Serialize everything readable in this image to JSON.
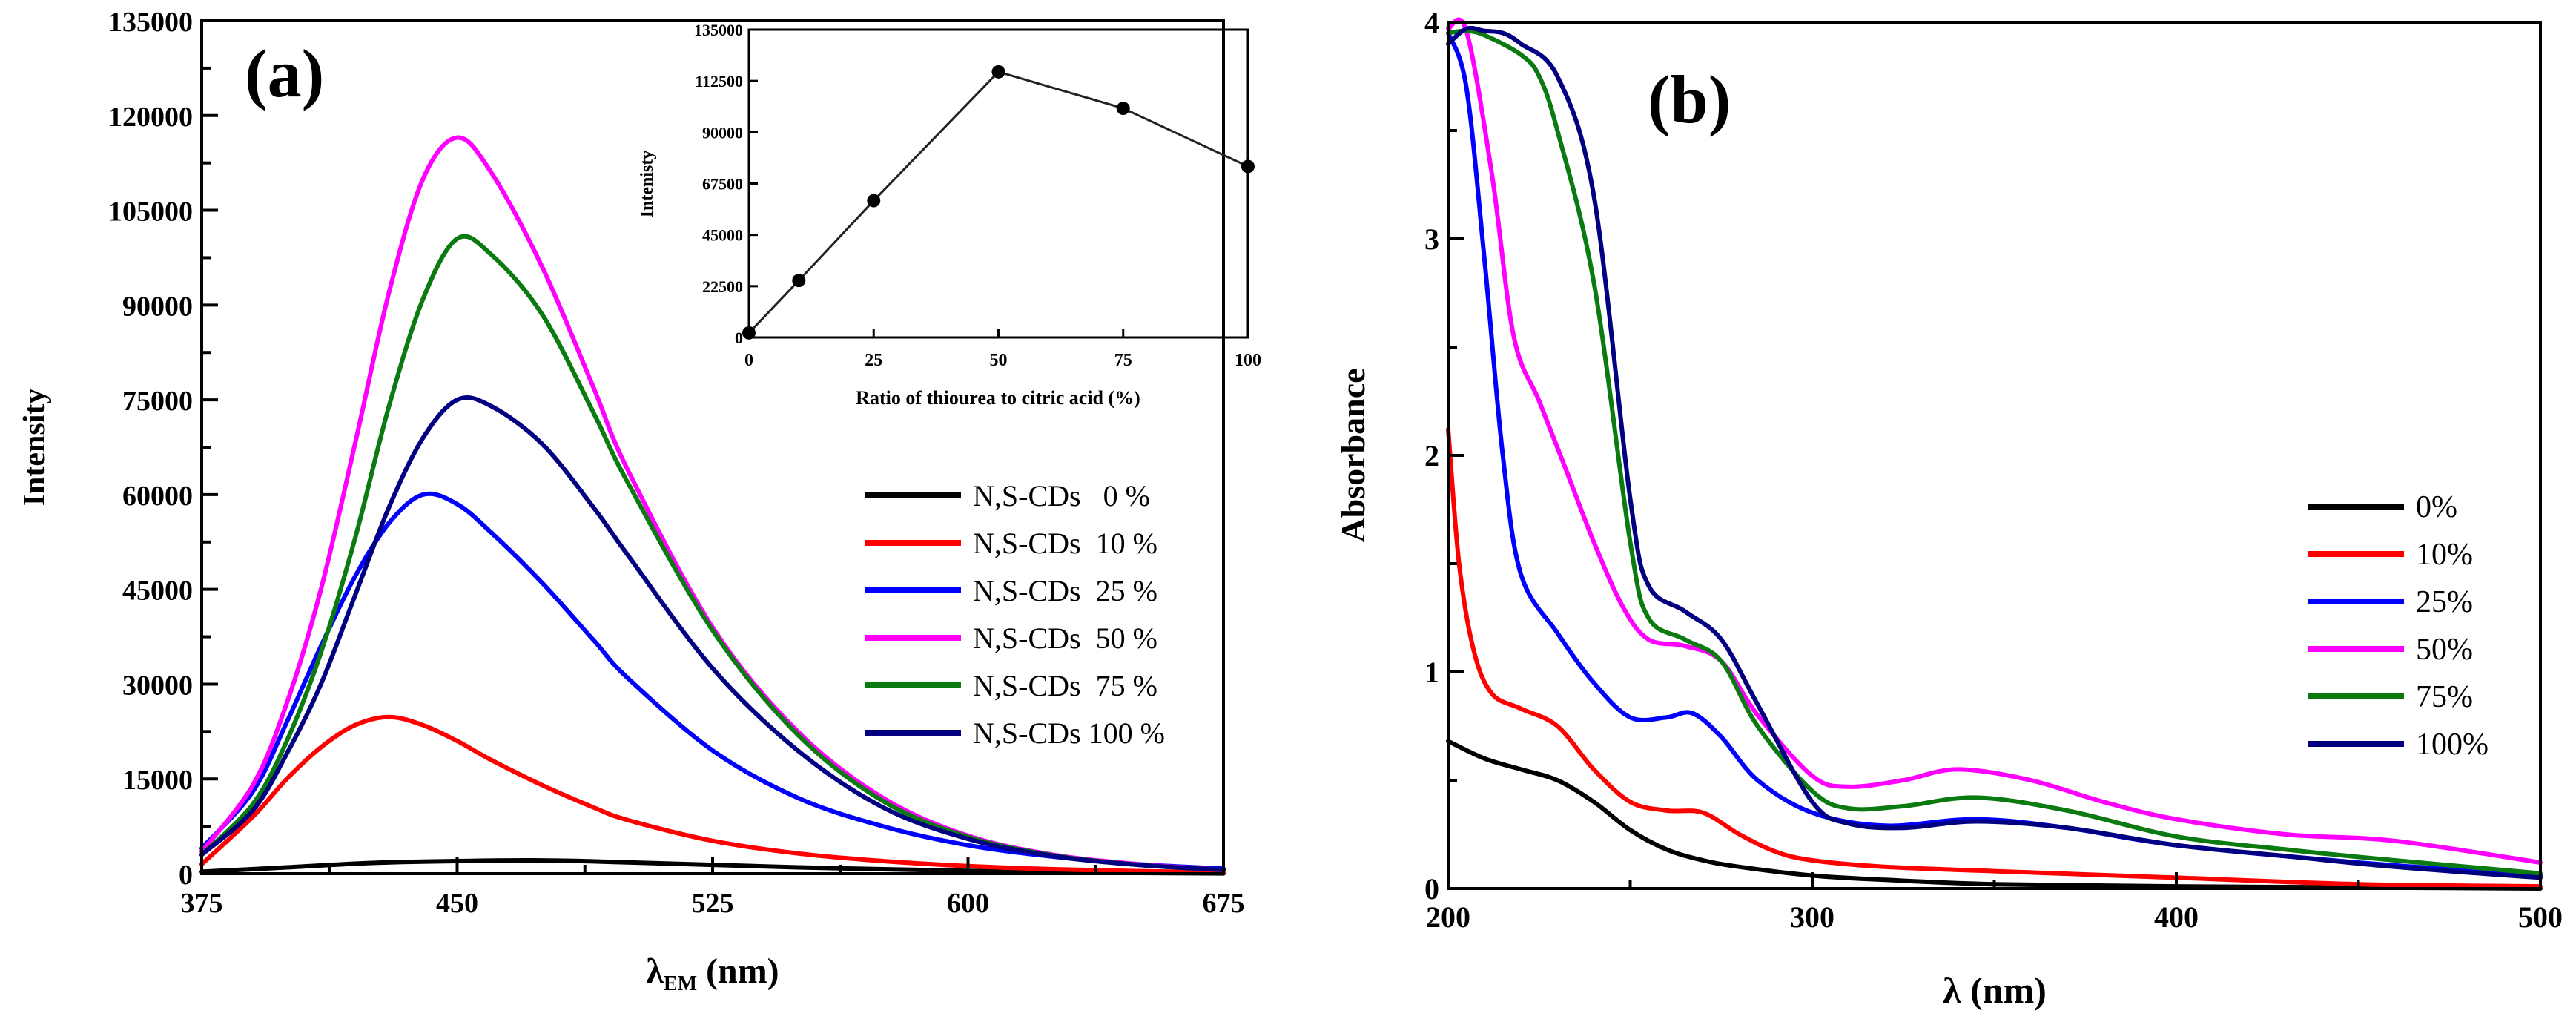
{
  "chart_data": [
    {
      "type": "line",
      "panel_label": "(a)",
      "xlabel_main": "λ",
      "xlabel_sub": "EM",
      "xlabel_unit": " (nm)",
      "ylabel": "Intensity",
      "xlim": [
        375,
        675
      ],
      "ylim": [
        0,
        135000
      ],
      "xticks": [
        "375",
        "450",
        "525",
        "600",
        "675"
      ],
      "yticks": [
        "0",
        "15000",
        "30000",
        "45000",
        "60000",
        "75000",
        "90000",
        "105000",
        "120000",
        "135000"
      ],
      "legend_location": "right",
      "series": [
        {
          "name": "N,S-CDs   0 %",
          "color": "#000000",
          "x": [
            375,
            400,
            425,
            450,
            475,
            500,
            525,
            550,
            575,
            600,
            625,
            650,
            675
          ],
          "y": [
            300,
            1000,
            1700,
            2000,
            2100,
            1800,
            1400,
            1000,
            700,
            450,
            250,
            120,
            50
          ]
        },
        {
          "name": "N,S-CDs  10 %",
          "color": "#ff0000",
          "x": [
            375,
            390,
            400,
            410,
            420,
            430,
            440,
            450,
            460,
            475,
            490,
            500,
            525,
            550,
            575,
            600,
            625,
            650,
            675
          ],
          "y": [
            1500,
            9000,
            15000,
            20000,
            23500,
            24800,
            23500,
            21000,
            18000,
            14000,
            10500,
            8500,
            5200,
            3200,
            2000,
            1200,
            700,
            400,
            200
          ]
        },
        {
          "name": "N,S-CDs  25 %",
          "color": "#0000ff",
          "x": [
            375,
            390,
            400,
            410,
            420,
            430,
            440,
            450,
            460,
            475,
            490,
            500,
            525,
            550,
            575,
            600,
            625,
            650,
            675
          ],
          "y": [
            4000,
            13000,
            24000,
            36000,
            47000,
            55500,
            60000,
            58500,
            54000,
            46000,
            37000,
            31000,
            19500,
            12000,
            7500,
            4500,
            2700,
            1500,
            800
          ]
        },
        {
          "name": "N,S-CDs  50 %",
          "color": "#ff00ff",
          "x": [
            375,
            390,
            400,
            410,
            420,
            430,
            440,
            450,
            460,
            475,
            490,
            500,
            525,
            550,
            575,
            600,
            625,
            650,
            675
          ],
          "y": [
            3500,
            14000,
            27000,
            45000,
            68000,
            92000,
            110000,
            116500,
            111000,
            96000,
            77000,
            64000,
            39000,
            22500,
            12000,
            6000,
            3000,
            1500,
            600
          ]
        },
        {
          "name": "N,S-CDs  75 %",
          "color": "#0b7a10",
          "x": [
            375,
            390,
            400,
            410,
            420,
            430,
            440,
            450,
            460,
            475,
            490,
            500,
            525,
            550,
            575,
            600,
            625,
            650,
            675
          ],
          "y": [
            3000,
            11000,
            21000,
            35000,
            53000,
            74000,
            91000,
            100500,
            98000,
            88500,
            73000,
            62000,
            38500,
            22000,
            11500,
            5800,
            2900,
            1400,
            600
          ]
        },
        {
          "name": "N,S-CDs 100 %",
          "color": "#000080",
          "x": [
            375,
            390,
            400,
            410,
            420,
            430,
            440,
            450,
            460,
            475,
            490,
            500,
            525,
            550,
            575,
            600,
            625,
            650,
            675
          ],
          "y": [
            3000,
            10000,
            19000,
            30000,
            44000,
            58000,
            69000,
            75000,
            74000,
            68000,
            58000,
            50500,
            32500,
            19500,
            10500,
            5500,
            2800,
            1400,
            600
          ]
        }
      ],
      "inset": {
        "type": "line",
        "xlabel": "Ratio of thiourea to citric acid (%)",
        "ylabel": "Intenisty",
        "xlim": [
          0,
          100
        ],
        "ylim": [
          0,
          135000
        ],
        "xticks": [
          "0",
          "25",
          "50",
          "75",
          "100"
        ],
        "yticks": [
          "0",
          "22500",
          "45000",
          "67500",
          "90000",
          "112500",
          "135000"
        ],
        "x": [
          0,
          10,
          25,
          50,
          75,
          100
        ],
        "y": [
          2000,
          25000,
          60000,
          116500,
          100500,
          75000
        ]
      }
    },
    {
      "type": "line",
      "panel_label": "(b)",
      "xlabel": "λ (nm)",
      "ylabel": "Absorbance",
      "xlim": [
        200,
        500
      ],
      "ylim": [
        0,
        4
      ],
      "xticks": [
        "200",
        "300",
        "400",
        "500"
      ],
      "yticks": [
        "0",
        "1",
        "2",
        "3",
        "4"
      ],
      "legend_location": "right",
      "series": [
        {
          "name": "0%",
          "color": "#000000",
          "x": [
            200,
            210,
            220,
            230,
            240,
            250,
            260,
            270,
            280,
            300,
            320,
            350,
            400,
            450,
            500
          ],
          "y": [
            0.68,
            0.6,
            0.55,
            0.5,
            0.4,
            0.27,
            0.18,
            0.13,
            0.1,
            0.06,
            0.04,
            0.02,
            0.01,
            0.005,
            0.0
          ]
        },
        {
          "name": "10%",
          "color": "#ff0000",
          "x": [
            200,
            203,
            207,
            212,
            220,
            230,
            240,
            250,
            260,
            270,
            280,
            290,
            300,
            320,
            350,
            400,
            450,
            500
          ],
          "y": [
            2.12,
            1.5,
            1.1,
            0.9,
            0.83,
            0.75,
            0.55,
            0.4,
            0.36,
            0.35,
            0.25,
            0.17,
            0.13,
            0.1,
            0.08,
            0.05,
            0.02,
            0.01
          ]
        },
        {
          "name": "25%",
          "color": "#0000ff",
          "x": [
            200,
            205,
            210,
            215,
            220,
            230,
            240,
            250,
            260,
            267,
            275,
            285,
            300,
            320,
            345,
            370,
            400,
            450,
            500
          ],
          "y": [
            3.95,
            3.7,
            2.9,
            2.0,
            1.45,
            1.18,
            0.95,
            0.79,
            0.79,
            0.81,
            0.7,
            0.5,
            0.35,
            0.29,
            0.32,
            0.28,
            0.2,
            0.12,
            0.06
          ]
        },
        {
          "name": "50%",
          "color": "#ff00ff",
          "x": [
            200,
            205,
            212,
            218,
            225,
            232,
            240,
            248,
            255,
            265,
            275,
            285,
            300,
            310,
            325,
            340,
            360,
            380,
            400,
            430,
            460,
            500
          ],
          "y": [
            3.97,
            3.96,
            3.3,
            2.55,
            2.25,
            1.95,
            1.6,
            1.3,
            1.15,
            1.12,
            1.05,
            0.8,
            0.52,
            0.47,
            0.5,
            0.55,
            0.5,
            0.4,
            0.32,
            0.25,
            0.22,
            0.12
          ]
        },
        {
          "name": "75%",
          "color": "#0b7a10",
          "x": [
            200,
            205,
            210,
            220,
            225,
            230,
            240,
            250,
            255,
            265,
            275,
            285,
            300,
            310,
            325,
            345,
            370,
            400,
            430,
            460,
            500
          ],
          "y": [
            3.95,
            3.96,
            3.94,
            3.85,
            3.75,
            3.5,
            2.8,
            1.6,
            1.25,
            1.15,
            1.05,
            0.75,
            0.45,
            0.37,
            0.38,
            0.42,
            0.36,
            0.24,
            0.18,
            0.13,
            0.07
          ]
        },
        {
          "name": "100%",
          "color": "#000080",
          "x": [
            200,
            205,
            210,
            215,
            220,
            230,
            240,
            250,
            255,
            265,
            275,
            285,
            300,
            310,
            325,
            345,
            370,
            400,
            430,
            460,
            500
          ],
          "y": [
            3.9,
            3.97,
            3.96,
            3.95,
            3.9,
            3.75,
            3.2,
            1.8,
            1.4,
            1.28,
            1.15,
            0.85,
            0.4,
            0.3,
            0.28,
            0.31,
            0.28,
            0.2,
            0.15,
            0.1,
            0.05
          ]
        }
      ]
    }
  ]
}
